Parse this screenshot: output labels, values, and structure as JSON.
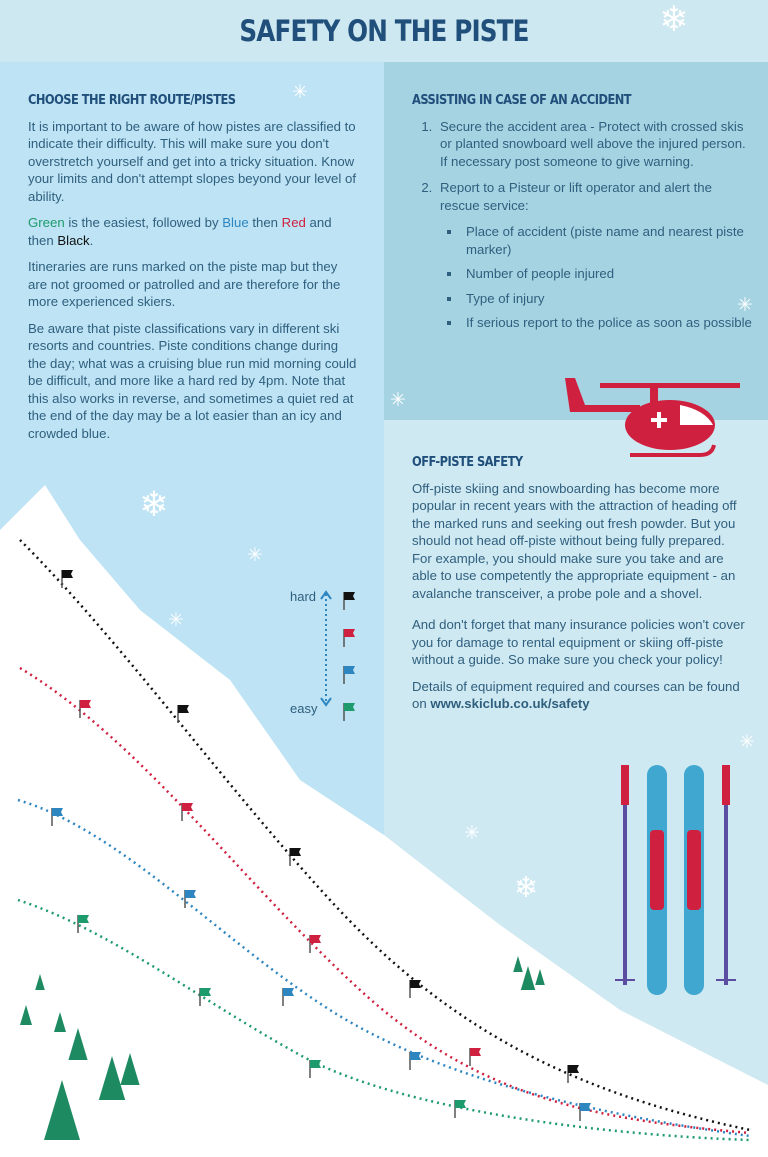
{
  "title": "SAFETY ON THE PISTE",
  "colors": {
    "green": "#1d9b6c",
    "blue": "#2e86c1",
    "red": "#d0203f",
    "black": "#111111",
    "heading": "#1f4f7a"
  },
  "route": {
    "heading": "CHOOSE THE RIGHT ROUTE/PISTES",
    "p1": "It is important to be aware of how pistes are classified to indicate their difficulty. This will make sure you don't overstretch yourself and get into a tricky situation. Know your limits and don't attempt slopes beyond your level of ability.",
    "green": "Green",
    "t1": " is the easiest, followed by ",
    "blue": "Blue",
    "t2": " then ",
    "red": "Red",
    "t3": " and then ",
    "black": "Black",
    "t4": ".",
    "p3": "Itineraries are runs marked on the piste map but they are not groomed or patrolled and are therefore for the more experienced skiers.",
    "p4": "Be aware that piste classifications vary in different ski resorts and countries. Piste conditions change during the day; what was a cruising blue run mid morning could be difficult, and more like a hard red by 4pm. Note that this also works in reverse, and sometimes a quiet red at the end of the day may be a lot easier than an icy and crowded blue."
  },
  "accident": {
    "heading": "ASSISTING IN CASE OF AN ACCIDENT",
    "steps": [
      "Secure the accident area - Protect with crossed skis or planted snowboard well above the injured person. If necessary post someone to give warning.",
      "Report to a Pisteur or lift operator and alert the rescue service:"
    ],
    "bullets": [
      "Place of accident (piste name and nearest piste marker)",
      "Number of people injured",
      "Type of injury",
      "If serious report to the police as soon as possible"
    ]
  },
  "offpiste": {
    "heading": "OFF-PISTE SAFETY",
    "p1": "Off-piste skiing and snowboarding has become more popular in recent years with the attraction of heading off the marked runs and seeking out fresh powder. But you should not head off-piste without being fully prepared. For example, you should make sure you take and are able to use competently the appropriate equipment - an avalanche transceiver, a probe pole and a shovel.",
    "p2": "And don't forget that many insurance policies won't cover you for damage to rental equipment or skiing off-piste without a guide. So make sure you check your policy!",
    "p3": "Details of equipment required and courses can be found on ",
    "link": "www.skiclub.co.uk/safety"
  },
  "legend": {
    "hard": "hard",
    "easy": "easy",
    "order": [
      "black",
      "red",
      "blue",
      "green"
    ]
  },
  "icons": [
    "snowflake-icon",
    "helicopter-icon",
    "ski-poles-icon",
    "skis-icon",
    "tree-icon",
    "piste-flag-icon"
  ]
}
